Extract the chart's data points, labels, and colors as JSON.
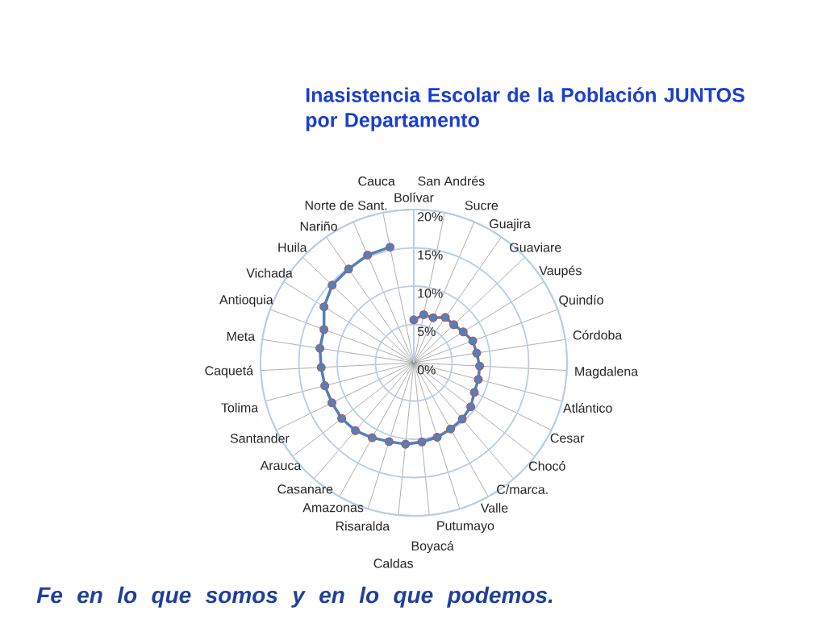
{
  "chart_data": {
    "type": "radar",
    "title": "Inasistencia Escolar de la Población JUNTOS por Departamento",
    "categories": [
      "Bolívar",
      "San Andrés",
      "Sucre",
      "Guajira",
      "Guaviare",
      "Vaupés",
      "Quindío",
      "Córdoba",
      "Magdalena",
      "Atlántico",
      "Cesar",
      "Chocó",
      "C/marca.",
      "Valle",
      "Putumayo",
      "Boyacá",
      "Caldas",
      "Risaralda",
      "Amazonas",
      "Casanare",
      "Arauca",
      "Santander",
      "Tolima",
      "Caquetá",
      "Meta",
      "Antioquia",
      "Vichada",
      "Huila",
      "Nariño",
      "Norte de Sant.",
      "Cauca"
    ],
    "series": [
      {
        "color": "#4f81bd",
        "values": [
          5.6,
          6.4,
          6.4,
          7.2,
          7.2,
          7.6,
          8.2,
          8.3,
          8.6,
          8.7,
          8.8,
          9.4,
          9.7,
          9.9,
          10.2,
          10.4,
          10.7,
          10.8,
          11.2,
          11.7,
          11.9,
          11.9,
          12.0,
          12.1,
          12.4,
          12.5,
          13.8,
          14.7,
          14.9,
          15.3,
          15.4
        ]
      }
    ],
    "ylim": [
      0,
      20
    ],
    "yticks": [
      {
        "value": 0,
        "label": "0%"
      },
      {
        "value": 5,
        "label": "5%"
      },
      {
        "value": 10,
        "label": "10%"
      },
      {
        "value": 15,
        "label": "15%"
      },
      {
        "value": 20,
        "label": "20%"
      }
    ],
    "grid": true,
    "marker": "circle",
    "annotations": [
      "Fe en lo que somos y en lo que podemos."
    ]
  }
}
